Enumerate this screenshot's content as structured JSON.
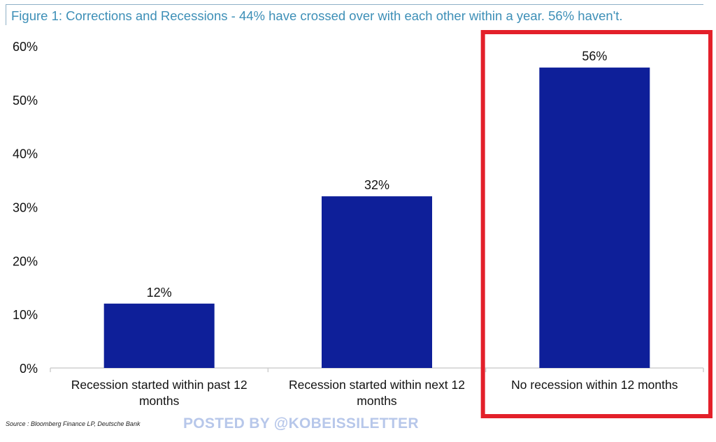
{
  "title": "Figure 1: Corrections and Recessions - 44% have crossed over with each other within a year. 56% haven't.",
  "source": "Source : Bloomberg Finance LP, Deutsche Bank",
  "watermark": "POSTED BY @KOBEISSILETTER",
  "colors": {
    "bar": "#0e1f99",
    "highlight_box": "#e3202a",
    "title": "#3d8fb7",
    "frame": "#8fb0c6"
  },
  "chart_data": {
    "type": "bar",
    "categories": [
      [
        "Recession started within past 12",
        "months"
      ],
      [
        "Recession started within next 12",
        "months"
      ],
      [
        "No recession within 12 months"
      ]
    ],
    "values": [
      12,
      32,
      56
    ],
    "value_labels": [
      "12%",
      "32%",
      "56%"
    ],
    "ylim": [
      0,
      60
    ],
    "yticks": [
      "0%",
      "10%",
      "20%",
      "30%",
      "40%",
      "50%",
      "60%"
    ],
    "grid": false,
    "highlighted_category_index": 2
  }
}
